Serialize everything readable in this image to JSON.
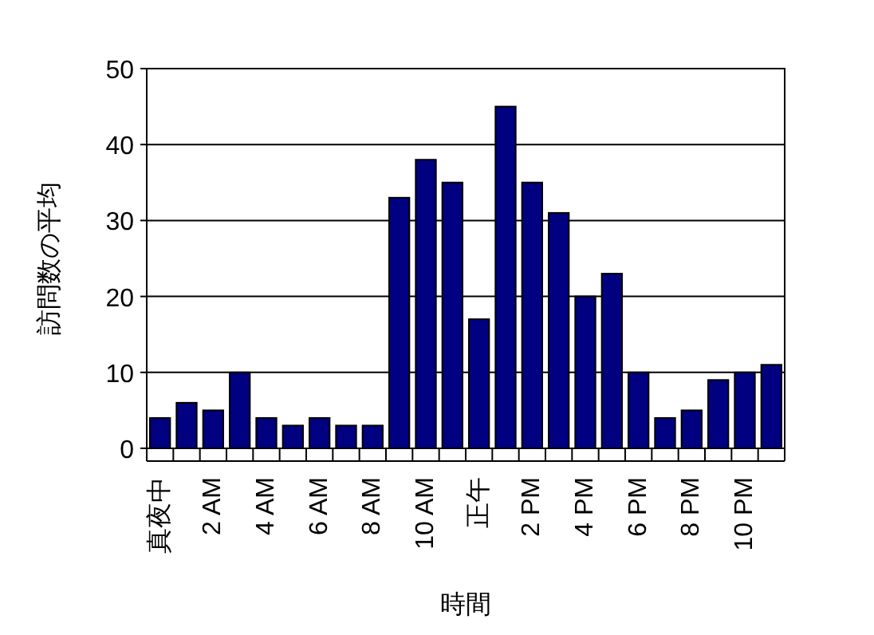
{
  "chart_data": {
    "type": "bar",
    "xlabel": "時間",
    "ylabel": "訪問数の平均",
    "categories": [
      "真夜中",
      null,
      "2 AM",
      null,
      "4 AM",
      null,
      "6 AM",
      null,
      "8 AM",
      null,
      "10 AM",
      null,
      "正午",
      null,
      "2 PM",
      null,
      "4 PM",
      null,
      "6 PM",
      null,
      "8 PM",
      null,
      "10 PM",
      null
    ],
    "values": [
      4,
      6,
      5,
      10,
      4,
      3,
      4,
      3,
      3,
      33,
      38,
      35,
      17,
      45,
      35,
      31,
      20,
      23,
      10,
      4,
      5,
      9,
      10,
      11
    ],
    "color": "#000080",
    "ylim": [
      0,
      50
    ],
    "yticks": [
      0,
      10,
      20,
      30,
      40,
      50
    ],
    "grid": "y"
  }
}
